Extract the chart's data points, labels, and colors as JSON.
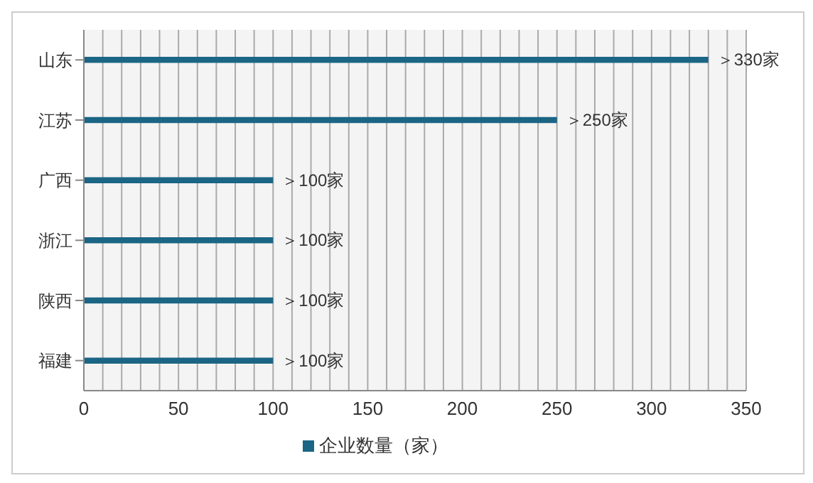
{
  "chart_data": {
    "type": "bar",
    "orientation": "horizontal",
    "categories": [
      "山东",
      "江苏",
      "广西",
      "浙江",
      "陕西",
      "福建"
    ],
    "series": [
      {
        "name": "企业数量（家）",
        "color": "#1b6585",
        "values": [
          330,
          250,
          100,
          100,
          100,
          100
        ],
        "value_labels": [
          "＞330家",
          "＞250家",
          "＞100家",
          "＞100家",
          "＞100家",
          "＞100家"
        ]
      }
    ],
    "xlim": [
      0,
      350
    ],
    "xticks": [
      0,
      {
        "value": 10,
        "label": null
      },
      {
        "value": 20,
        "label": null
      },
      {
        "value": 30,
        "label": null
      },
      {
        "value": 40,
        "label": null
      },
      50,
      {
        "value": 60,
        "label": null
      },
      {
        "value": 70,
        "label": null
      },
      {
        "value": 80,
        "label": null
      },
      {
        "value": 90,
        "label": null
      },
      100,
      {
        "value": 110,
        "label": null
      },
      {
        "value": 120,
        "label": null
      },
      {
        "value": 130,
        "label": null
      },
      {
        "value": 140,
        "label": null
      },
      150,
      {
        "value": 160,
        "label": null
      },
      {
        "value": 170,
        "label": null
      },
      {
        "value": 180,
        "label": null
      },
      {
        "value": 190,
        "label": null
      },
      200,
      {
        "value": 210,
        "label": null
      },
      {
        "value": 220,
        "label": null
      },
      {
        "value": 230,
        "label": null
      },
      {
        "value": 240,
        "label": null
      },
      250,
      {
        "value": 260,
        "label": null
      },
      {
        "value": 270,
        "label": null
      },
      {
        "value": 280,
        "label": null
      },
      {
        "value": 290,
        "label": null
      },
      300,
      {
        "value": 310,
        "label": null
      },
      {
        "value": 320,
        "label": null
      },
      {
        "value": 330,
        "label": null
      },
      {
        "value": 340,
        "label": null
      },
      350
    ],
    "grid": "x",
    "legend": "bottom"
  }
}
